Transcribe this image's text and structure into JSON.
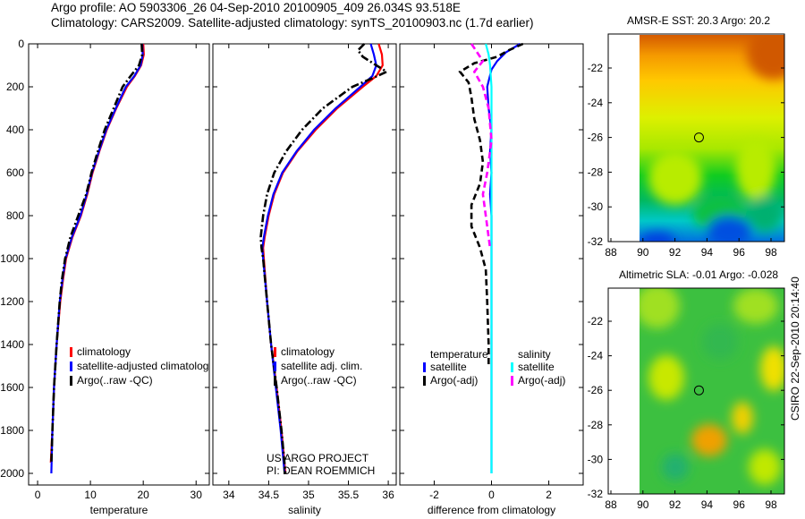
{
  "header": {
    "line1": "Argo profile: AO 5903306_26 04-Sep-2010 20100905_409 26.034S 93.518E",
    "line2": "Climatology: CARS2009. Satellite-adjusted climatology: synTS_20100903.nc (1.7d earlier)"
  },
  "side_label": "CSIRO 22-Sep-2010 20:14:40",
  "colors": {
    "red": "#ff0000",
    "blue": "#0000ff",
    "black": "#000000",
    "cyan": "#00ffff",
    "magenta": "#ff00ff"
  },
  "chart_data": [
    {
      "type": "line",
      "xlabel": "temperature",
      "xlim": [
        -1.7,
        32.5
      ],
      "ylim": [
        2050,
        0
      ],
      "xticks": [
        "0",
        "10",
        "20",
        "30"
      ],
      "xtick_values": [
        0,
        10,
        20,
        30
      ],
      "yticks": [
        "0",
        "200",
        "400",
        "600",
        "800",
        "1000",
        "1200",
        "1400",
        "1600",
        "1800",
        "2000"
      ],
      "legend": [
        "climatology",
        "satellite-adjusted climatolog",
        "Argo(..raw -QC)"
      ],
      "series": [
        {
          "name": "climatology",
          "style": "solid",
          "color": "#ff0000",
          "depth": [
            0,
            50,
            100,
            150,
            200,
            300,
            400,
            500,
            600,
            700,
            800,
            900,
            1000,
            1100,
            1200,
            1400,
            1600,
            1800,
            1950
          ],
          "values": [
            20,
            20.1,
            19.6,
            18.4,
            16.9,
            14.9,
            13.1,
            11.7,
            10.4,
            9.4,
            8.2,
            6.6,
            5.4,
            4.8,
            4.3,
            3.6,
            3.1,
            2.8,
            2.5
          ]
        },
        {
          "name": "satellite-adjusted climatology",
          "style": "solid",
          "color": "#0000ff",
          "depth": [
            0,
            50,
            100,
            150,
            200,
            300,
            400,
            500,
            600,
            700,
            800,
            900,
            1000,
            1100,
            1200,
            1400,
            1600,
            1800,
            2000
          ],
          "values": [
            19.8,
            19.9,
            19.5,
            18.3,
            16.7,
            14.8,
            13,
            11.6,
            10.3,
            9.3,
            8.1,
            6.5,
            5.3,
            4.7,
            4.2,
            3.6,
            3.1,
            2.8,
            2.6
          ]
        },
        {
          "name": "Argo(..raw -QC)",
          "style": "dashdot",
          "color": "#000000",
          "depth": [
            0,
            50,
            100,
            150,
            200,
            300,
            400,
            500,
            600,
            700,
            800,
            900,
            1000,
            1100,
            1200,
            1400,
            1600,
            1800,
            1950
          ],
          "values": [
            19.7,
            19.8,
            19.2,
            17.6,
            16.1,
            14.4,
            12.7,
            11.4,
            10.2,
            9.2,
            7.7,
            6.2,
            5.2,
            4.6,
            4.2,
            3.6,
            3.1,
            2.8,
            2.6
          ]
        }
      ]
    },
    {
      "type": "line",
      "xlabel": "salinity",
      "xlim": [
        33.8,
        36.1
      ],
      "ylim": [
        2050,
        0
      ],
      "xticks": [
        "34",
        "34.5",
        "35",
        "35.5",
        "36"
      ],
      "xtick_values": [
        34,
        34.5,
        35,
        35.5,
        36
      ],
      "legend": [
        "climatology",
        "satellite adj. clim.",
        "Argo(..raw -QC)"
      ],
      "annotation": [
        "US ARGO PROJECT",
        "PI: DEAN ROEMMICH"
      ],
      "series": [
        {
          "name": "climatology",
          "style": "solid",
          "color": "#ff0000",
          "depth": [
            0,
            50,
            100,
            150,
            200,
            300,
            400,
            500,
            600,
            700,
            800,
            900,
            950,
            1000,
            1200,
            1400,
            1600,
            1800,
            2000
          ],
          "values": [
            35.88,
            35.92,
            35.93,
            35.85,
            35.68,
            35.36,
            35.09,
            34.86,
            34.68,
            34.57,
            34.5,
            34.45,
            34.43,
            34.44,
            34.48,
            34.53,
            34.6,
            34.66,
            34.71
          ]
        },
        {
          "name": "satellite adj. clim.",
          "style": "solid",
          "color": "#0000ff",
          "depth": [
            0,
            50,
            100,
            150,
            200,
            300,
            400,
            500,
            600,
            700,
            800,
            900,
            950,
            1000,
            1200,
            1400,
            1600,
            1800,
            2000
          ],
          "values": [
            35.78,
            35.82,
            35.85,
            35.8,
            35.65,
            35.34,
            35.07,
            34.85,
            34.67,
            34.56,
            34.49,
            34.44,
            34.42,
            34.43,
            34.48,
            34.53,
            34.59,
            34.65,
            34.7
          ]
        },
        {
          "name": "Argo(..raw -QC)",
          "style": "dashdot",
          "color": "#000000",
          "depth": [
            0,
            30,
            60,
            100,
            130,
            160,
            200,
            300,
            400,
            500,
            600,
            700,
            800,
            900,
            950,
            1000,
            1200,
            1400,
            1600,
            1800,
            2000
          ],
          "values": [
            35.7,
            35.62,
            35.68,
            35.85,
            35.98,
            35.8,
            35.55,
            35.18,
            34.92,
            34.72,
            34.57,
            34.48,
            34.43,
            34.4,
            34.41,
            34.43,
            34.48,
            34.53,
            34.6,
            34.66,
            34.71
          ]
        }
      ]
    },
    {
      "type": "line",
      "xlabel": "difference from climatology",
      "xlim": [
        -3.2,
        3.2
      ],
      "ylim": [
        2050,
        0
      ],
      "xticks": [
        "-2",
        "0",
        "2"
      ],
      "xtick_values": [
        -2,
        0,
        2
      ],
      "legend_groups": [
        {
          "title": "temperature",
          "items": [
            "satellite",
            "Argo(-adj)"
          ]
        },
        {
          "title": "salinity",
          "items": [
            "satellite",
            "Argo(-adj)"
          ]
        }
      ],
      "series": [
        {
          "name": "temperature satellite",
          "style": "solid",
          "color": "#0000ff",
          "depth": [
            0,
            40,
            80,
            120,
            200,
            300,
            400,
            500,
            600,
            700,
            800,
            1000,
            1500,
            2000
          ],
          "values": [
            1.0,
            0.5,
            0.2,
            0,
            -0.15,
            -0.1,
            0,
            -0.05,
            0,
            -0.05,
            0,
            0,
            0,
            0
          ]
        },
        {
          "name": "temperature Argo(-adj)",
          "style": "dashed",
          "color": "#000000",
          "depth": [
            0,
            30,
            60,
            90,
            130,
            180,
            250,
            350,
            450,
            550,
            650,
            750,
            850,
            950,
            1050,
            1200,
            1400,
            1500
          ],
          "values": [
            1.1,
            0.6,
            0.2,
            -0.6,
            -1.1,
            -0.8,
            -0.7,
            -0.6,
            -0.4,
            -0.3,
            -0.4,
            -0.7,
            -0.7,
            -0.4,
            -0.2,
            -0.15,
            -0.1,
            -0.1
          ]
        },
        {
          "name": "salinity satellite",
          "style": "solid",
          "color": "#00ffff",
          "depth": [
            0,
            50,
            100,
            200,
            300,
            500,
            800,
            1200,
            1600,
            2000
          ],
          "values": [
            -0.2,
            -0.1,
            -0.05,
            0,
            0,
            0,
            0,
            0,
            0,
            0
          ]
        },
        {
          "name": "salinity Argo(-adj)",
          "style": "dashed",
          "color": "#ff00ff",
          "depth": [
            0,
            40,
            80,
            130,
            200,
            300,
            450,
            600,
            700,
            800,
            900,
            950
          ],
          "values": [
            -0.7,
            -0.5,
            -0.3,
            -0.6,
            -0.3,
            -0.1,
            0,
            -0.15,
            -0.3,
            -0.2,
            -0.1,
            -0.05
          ]
        }
      ]
    },
    {
      "type": "heatmap",
      "title": "AMSR-E SST: 20.3 Argo: 20.2",
      "xticks": [
        "88",
        "90",
        "92",
        "94",
        "96",
        "98"
      ],
      "yticks": [
        "-22",
        "-24",
        "-26",
        "-28",
        "-30",
        "-32"
      ],
      "marker": {
        "lon": 93.5,
        "lat": -26.0
      }
    },
    {
      "type": "heatmap",
      "title": "Altimetric SLA: -0.01 Argo: -0.028",
      "xticks": [
        "88",
        "90",
        "92",
        "94",
        "96",
        "98"
      ],
      "yticks": [
        "-22",
        "-24",
        "-26",
        "-28",
        "-30",
        "-32"
      ],
      "marker": {
        "lon": 93.5,
        "lat": -26.0
      }
    }
  ]
}
